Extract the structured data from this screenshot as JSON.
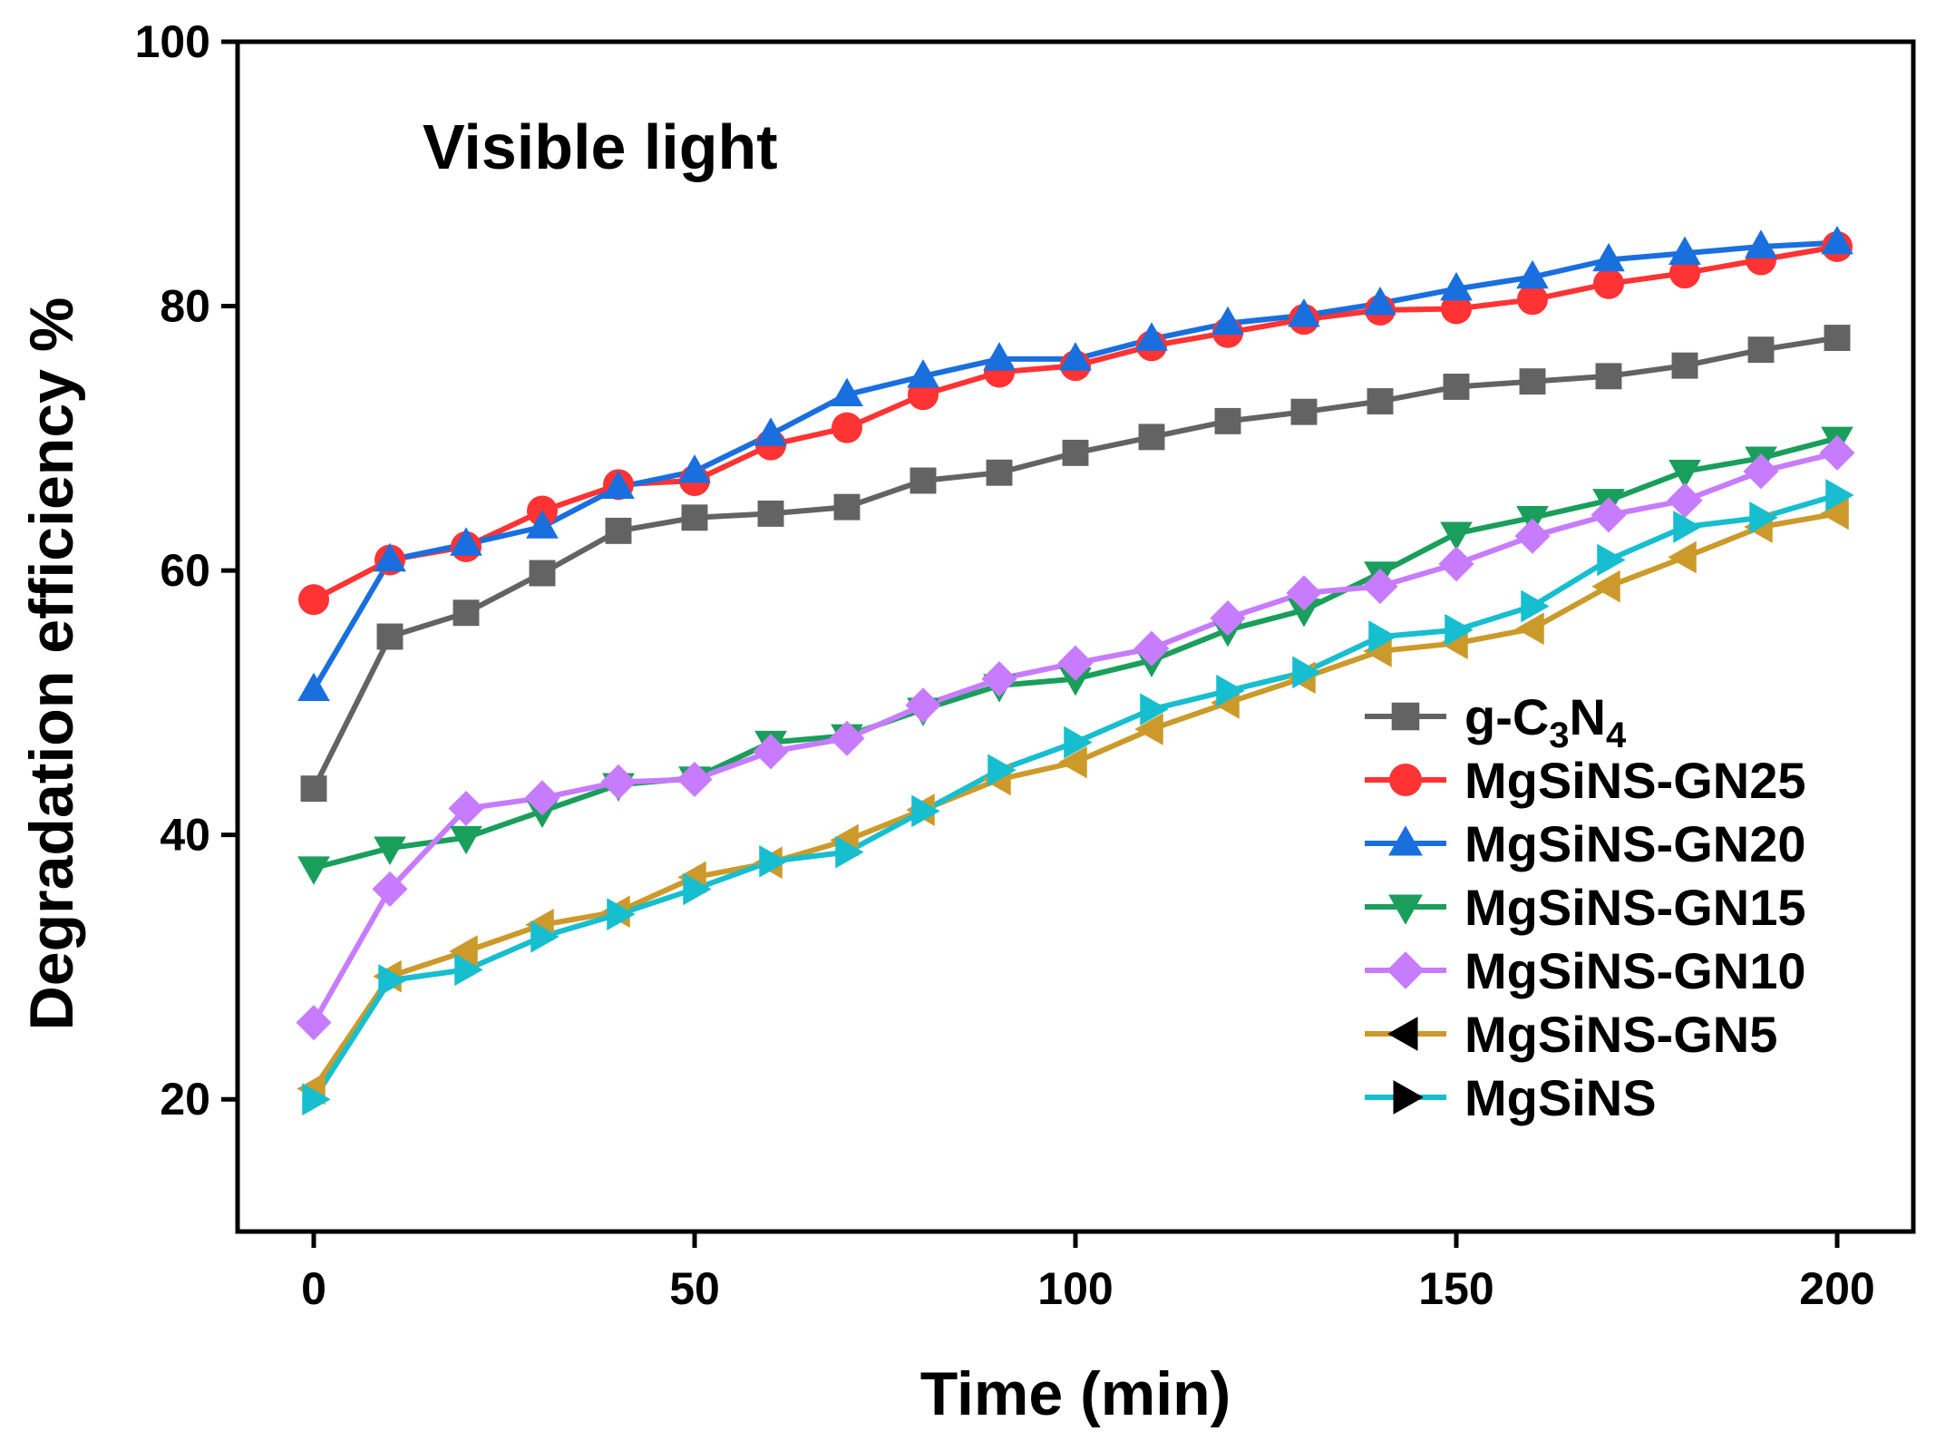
{
  "chart_data": {
    "type": "line",
    "title": "",
    "annotation": "Visible light",
    "annotation_color": "#00ff00",
    "xlabel": "Time (min)",
    "ylabel": "Degradation efficiency %",
    "xlim": [
      -10,
      210
    ],
    "ylim": [
      10,
      100
    ],
    "xticks": [
      0,
      50,
      100,
      150,
      200
    ],
    "yticks": [
      20,
      40,
      60,
      80,
      100
    ],
    "xtick_labels": [
      "0",
      "50",
      "100",
      "150",
      "200"
    ],
    "ytick_labels": [
      "20",
      "40",
      "60",
      "80",
      "100"
    ],
    "grid": false,
    "legend_position": "center-right",
    "x": [
      0,
      10,
      20,
      30,
      40,
      50,
      60,
      70,
      80,
      90,
      100,
      110,
      120,
      130,
      140,
      150,
      160,
      170,
      180,
      190,
      200
    ],
    "series": [
      {
        "name": "g-C3N4",
        "label_main": "g-C",
        "label_sub1": "3",
        "label_mid": "N",
        "label_sub2": "4",
        "color": "#636363",
        "marker": "square",
        "values": [
          43.5,
          55.0,
          56.8,
          59.8,
          63.0,
          64.0,
          64.3,
          64.8,
          66.8,
          67.4,
          68.9,
          70.1,
          71.3,
          72.0,
          72.8,
          73.9,
          74.3,
          74.7,
          75.5,
          76.7,
          77.6
        ]
      },
      {
        "name": "MgSiNS-GN25",
        "color": "#ff3333",
        "marker": "circle",
        "values": [
          57.8,
          60.8,
          61.8,
          64.5,
          66.5,
          66.8,
          69.5,
          70.8,
          73.3,
          75.0,
          75.5,
          77.0,
          78.0,
          79.0,
          79.7,
          79.8,
          80.5,
          81.7,
          82.5,
          83.5,
          84.5
        ]
      },
      {
        "name": "MgSiNS-GN20",
        "color": "#1a6fdf",
        "marker": "triangle-up",
        "values": [
          51.0,
          60.8,
          62.0,
          63.3,
          66.3,
          67.5,
          70.3,
          73.3,
          74.7,
          76.0,
          76.0,
          77.5,
          78.7,
          79.3,
          80.2,
          81.3,
          82.2,
          83.5,
          84.0,
          84.5,
          84.8
        ]
      },
      {
        "name": "MgSiNS-GN15",
        "color": "#1a9e5c",
        "marker": "triangle-down",
        "values": [
          37.5,
          39.0,
          39.8,
          41.8,
          43.8,
          44.3,
          47.0,
          47.5,
          49.5,
          51.3,
          51.8,
          53.2,
          55.5,
          57.0,
          59.8,
          62.8,
          64.0,
          65.3,
          67.5,
          68.5,
          70.0
        ]
      },
      {
        "name": "MgSiNS-GN10",
        "color": "#c77cff",
        "marker": "diamond",
        "values": [
          25.8,
          35.9,
          42.0,
          42.8,
          44.0,
          44.2,
          46.3,
          47.3,
          49.8,
          51.8,
          53.0,
          54.1,
          56.4,
          58.3,
          58.8,
          60.5,
          62.6,
          64.2,
          65.3,
          67.5,
          68.9
        ]
      },
      {
        "name": "MgSiNS-GN5",
        "color": "#cc9a2a",
        "marker": "triangle-left",
        "values": [
          20.8,
          29.3,
          31.2,
          33.2,
          34.2,
          36.8,
          37.9,
          39.6,
          41.9,
          44.2,
          45.5,
          48.0,
          50.0,
          51.9,
          53.9,
          54.5,
          55.6,
          58.8,
          61.0,
          63.3,
          64.3
        ]
      },
      {
        "name": "MgSiNS",
        "color": "#17becf",
        "marker": "triangle-right",
        "values": [
          20.0,
          29.0,
          29.8,
          32.3,
          34.0,
          35.9,
          38.0,
          38.7,
          41.8,
          44.9,
          47.0,
          49.5,
          50.9,
          52.3,
          55.0,
          55.5,
          57.3,
          60.8,
          63.3,
          64.0,
          65.7
        ]
      }
    ]
  }
}
